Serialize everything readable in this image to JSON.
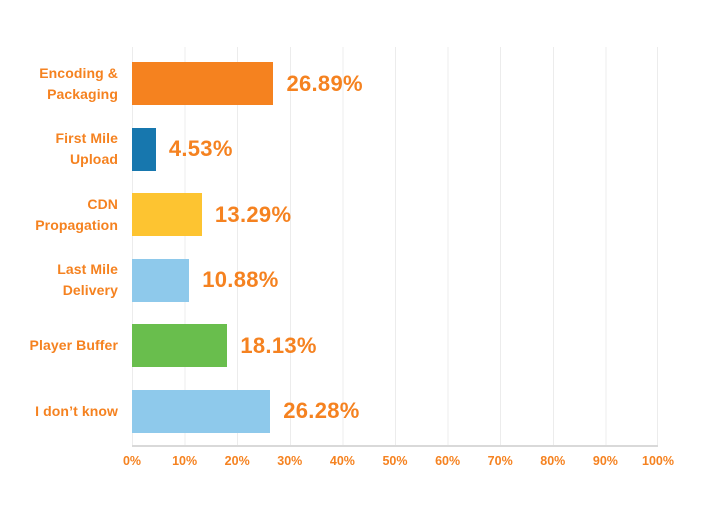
{
  "chart_data": {
    "type": "bar",
    "orientation": "horizontal",
    "title": "",
    "xlabel": "",
    "ylabel": "",
    "xlim": [
      0,
      100
    ],
    "grid": true,
    "legend": false,
    "categories": [
      [
        "Encoding &",
        "Packaging"
      ],
      [
        "First Mile",
        "Upload"
      ],
      [
        "CDN",
        "Propagation"
      ],
      [
        "Last Mile",
        "Delivery"
      ],
      [
        "Player Buffer"
      ],
      [
        "I don’t know"
      ]
    ],
    "values": [
      26.89,
      4.53,
      13.29,
      10.88,
      18.13,
      26.28
    ],
    "value_labels": [
      "26.89%",
      "4.53%",
      "13.29%",
      "10.88%",
      "18.13%",
      "26.28%"
    ],
    "bar_colors": [
      "#F5821F",
      "#1777AE",
      "#FDC431",
      "#8EC9EB",
      "#69BE4D",
      "#8EC9EB"
    ],
    "x_ticks": [
      "0%",
      "10%",
      "20%",
      "30%",
      "40%",
      "50%",
      "60%",
      "70%",
      "80%",
      "90%",
      "100%"
    ],
    "colors": {
      "label_text": "#F58220",
      "gridline": "#ECECEC",
      "axis_line": "#D9D9D9",
      "background": "#FFFFFF"
    }
  }
}
